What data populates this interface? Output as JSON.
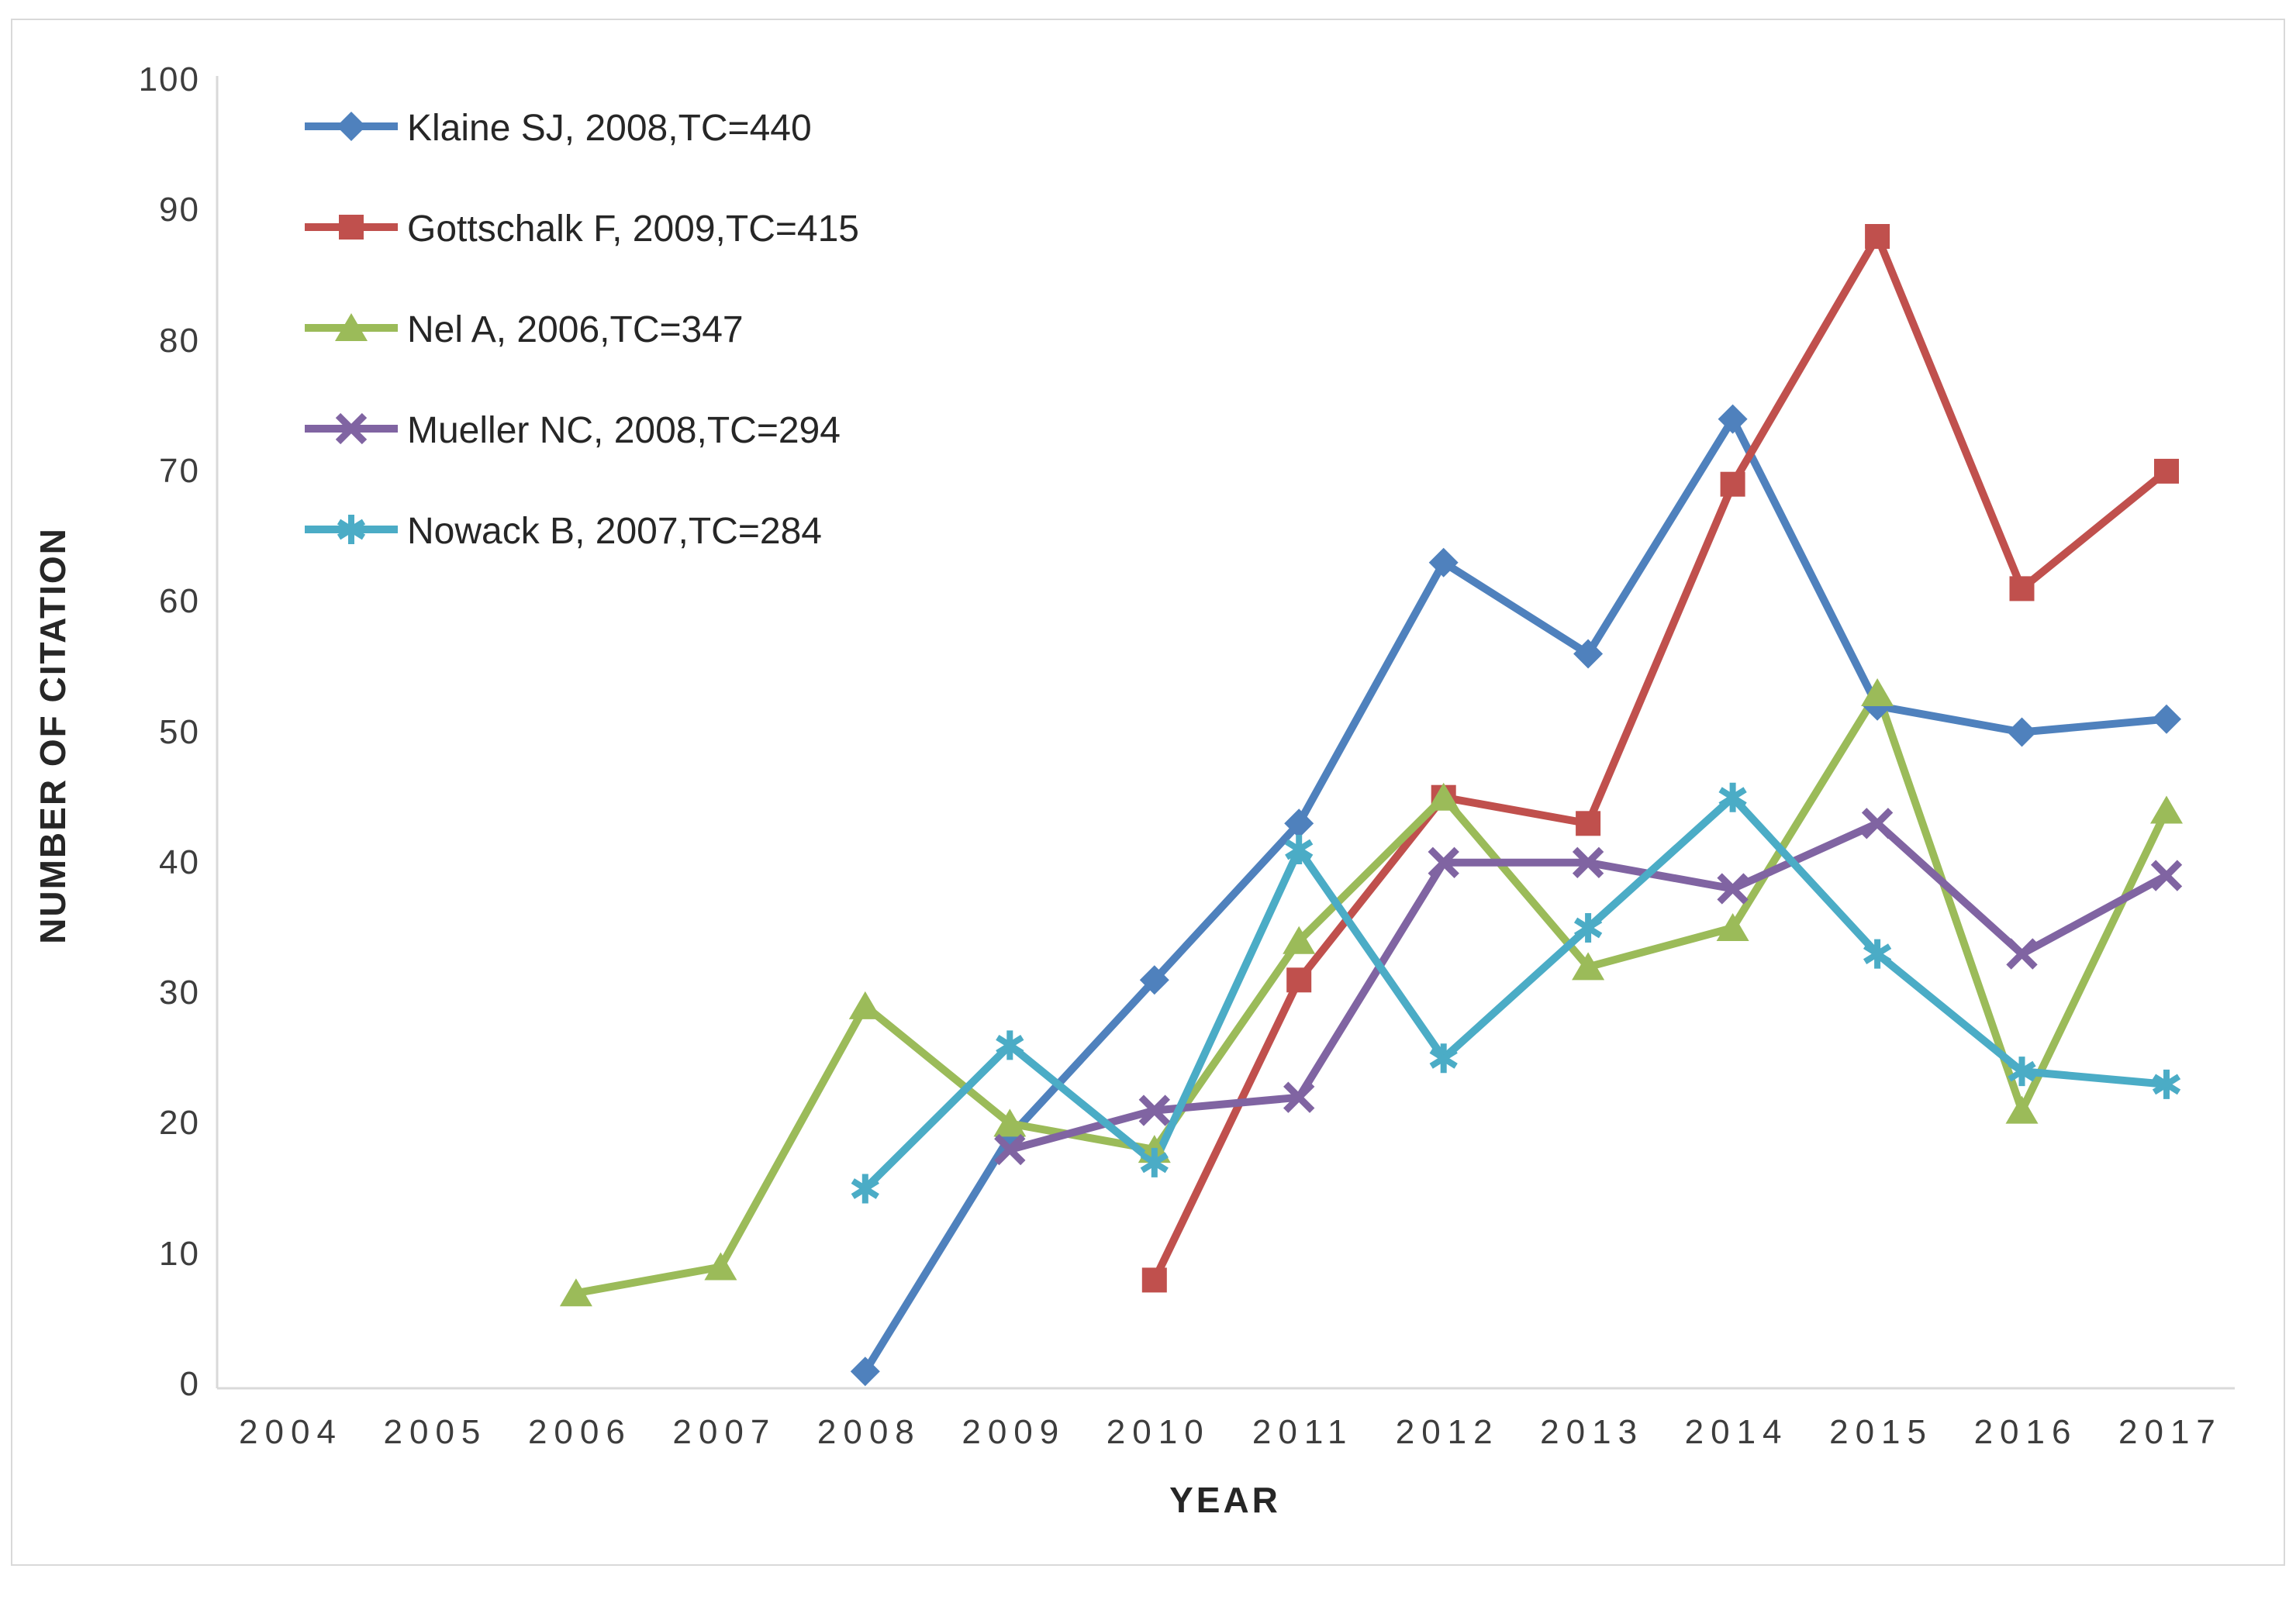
{
  "figure": {
    "background": "#ffffff",
    "border_color": "#d9d9d9"
  },
  "axes": {
    "x_title": "YEAR",
    "y_title": "NUMBER OF CITATION",
    "x_ticks": [
      "2004",
      "2005",
      "2006",
      "2007",
      "2008",
      "2009",
      "2010",
      "2011",
      "2012",
      "2013",
      "2014",
      "2015",
      "2016",
      "2017"
    ],
    "y_ticks": [
      0,
      10,
      20,
      30,
      40,
      50,
      60,
      70,
      80,
      90,
      100
    ],
    "axis_line_color": "#d9d9d9",
    "tick_label_color": "#3d3d3d"
  },
  "chart_data": {
    "type": "line",
    "title": "",
    "xlabel": "YEAR",
    "ylabel": "NUMBER OF CITATION",
    "xlim": [
      2004,
      2017
    ],
    "ylim": [
      0,
      100
    ],
    "grid": false,
    "legend_position": "top-left-inside",
    "categories": [
      2004,
      2005,
      2006,
      2007,
      2008,
      2009,
      2010,
      2011,
      2012,
      2013,
      2014,
      2015,
      2016,
      2017
    ],
    "series": [
      {
        "name": "Klaine SJ, 2008,TC=440",
        "color": "#4F81BD",
        "marker": "diamond",
        "x": [
          2008,
          2009,
          2010,
          2011,
          2012,
          2013,
          2014,
          2015,
          2016,
          2017
        ],
        "values": [
          1,
          19,
          31,
          43,
          63,
          56,
          74,
          52,
          50,
          51
        ]
      },
      {
        "name": "Gottschalk F, 2009,TC=415",
        "color": "#C0504D",
        "marker": "square",
        "x": [
          2010,
          2011,
          2012,
          2013,
          2014,
          2015,
          2016,
          2017
        ],
        "values": [
          8,
          31,
          45,
          43,
          69,
          88,
          61,
          70
        ]
      },
      {
        "name": "Nel A, 2006,TC=347",
        "color": "#9BBB59",
        "marker": "triangle",
        "x": [
          2006,
          2007,
          2008,
          2009,
          2010,
          2011,
          2012,
          2013,
          2014,
          2015,
          2016,
          2017
        ],
        "values": [
          7,
          9,
          29,
          20,
          18,
          34,
          45,
          32,
          35,
          53,
          21,
          44
        ]
      },
      {
        "name": "Mueller NC, 2008,TC=294",
        "color": "#8064A2",
        "marker": "x",
        "x": [
          2009,
          2010,
          2011,
          2012,
          2013,
          2014,
          2015,
          2016,
          2017
        ],
        "values": [
          18,
          21,
          22,
          40,
          40,
          38,
          43,
          33,
          39
        ]
      },
      {
        "name": "Nowack B, 2007,TC=284",
        "color": "#4BACC6",
        "marker": "asterisk",
        "x": [
          2008,
          2009,
          2010,
          2011,
          2012,
          2013,
          2014,
          2015,
          2016,
          2017
        ],
        "values": [
          15,
          26,
          17,
          41,
          25,
          35,
          45,
          33,
          24,
          23
        ]
      }
    ]
  }
}
